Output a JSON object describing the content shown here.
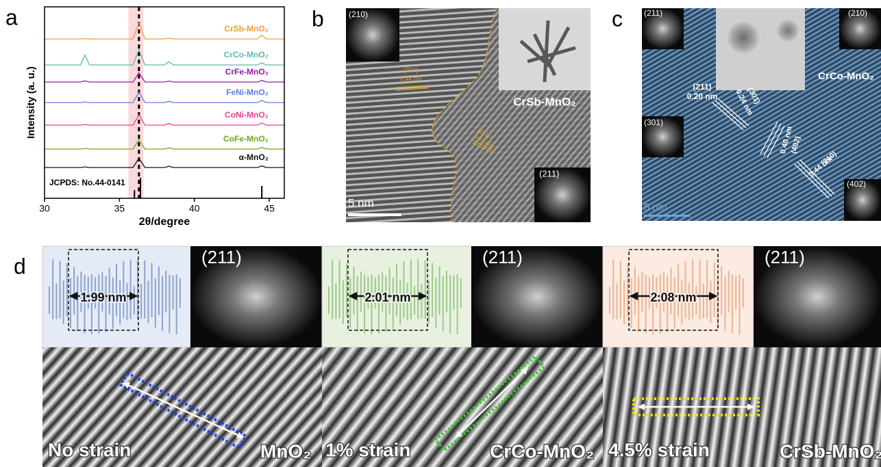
{
  "panel_labels": [
    "a",
    "b",
    "c",
    "d"
  ],
  "chart_data": {
    "type": "line",
    "xlabel": "2θ/degree",
    "ylabel": "Intensity (a. u.)",
    "xlim": [
      30,
      46
    ],
    "xticks": [
      30,
      35,
      40,
      45
    ],
    "x": [
      30,
      32.4,
      32.7,
      33.0,
      35.9,
      36.3,
      36.7,
      38.0,
      38.3,
      38.6,
      44.2,
      44.5,
      44.8,
      46
    ],
    "series": [
      {
        "name": "CrSb-MnO₂",
        "color": "#f39a3a",
        "values": [
          0,
          0,
          2,
          0,
          0,
          80,
          0,
          0,
          4,
          0,
          0,
          18,
          0,
          0
        ]
      },
      {
        "name": "CrCo-MnO₂",
        "color": "#5cb8b2",
        "values": [
          0,
          0,
          48,
          0,
          0,
          75,
          0,
          0,
          16,
          0,
          0,
          10,
          0,
          0
        ]
      },
      {
        "name": "CrFe-MnO₂",
        "color": "#9a18b0",
        "values": [
          0,
          0,
          6,
          0,
          0,
          45,
          0,
          0,
          5,
          0,
          0,
          8,
          0,
          0
        ]
      },
      {
        "name": "FeNi-MnO₂",
        "color": "#5a7fe0",
        "values": [
          0,
          0,
          3,
          0,
          0,
          50,
          0,
          0,
          6,
          0,
          0,
          10,
          0,
          0
        ]
      },
      {
        "name": "CoNi-MnO₂",
        "color": "#e8409a",
        "values": [
          0,
          0,
          3,
          0,
          0,
          50,
          0,
          0,
          8,
          0,
          0,
          10,
          0,
          0
        ]
      },
      {
        "name": "CoFe-MnO₂",
        "color": "#6aaa1e",
        "values": [
          0,
          0,
          3,
          0,
          0,
          45,
          0,
          0,
          6,
          0,
          0,
          8,
          0,
          0
        ]
      },
      {
        "name": "α-MnO₂",
        "color": "#111111",
        "values": [
          0,
          0,
          3,
          0,
          0,
          45,
          0,
          0,
          6,
          0,
          0,
          8,
          0,
          0
        ]
      }
    ],
    "highlight_band": [
      35.6,
      36.6
    ],
    "highlight_color": "#f8c8cc",
    "reference_line": 36.3,
    "reference_label": "JCPDS: No.44-0141",
    "reference_peaks": [
      36.0,
      36.4,
      44.5
    ],
    "reference_intensities": [
      40,
      100,
      60
    ]
  },
  "panel_b": {
    "fft_top": "(210)",
    "fringe1_index": "[210]",
    "fringe1_spacing": "0.44 nm",
    "fringe2_index": "[211]",
    "fringe2_spacing": "0.24 nm",
    "sample": "CrSb-MnO₂",
    "fft_bottom": "(211)",
    "scale": "5 nm"
  },
  "panel_c": {
    "fft_top_left": "(211)",
    "fft_top_right": "(210)",
    "sample": "CrCo-MnO₂",
    "fringe_211_index": "(211)",
    "fringe_211_spacing": "0.20 nm",
    "fringe_301_index": "(301)",
    "fringe_301_spacing": "0.24 nm",
    "fft_mid_left": "(301)",
    "fringe_402_spacing": "0.40 nm",
    "fringe_402_index": "(402)",
    "fringe_210_index": "(210)",
    "fringe_210_spacing": "0.44 nm",
    "fft_bottom_right": "(402)",
    "scale": "5 nm"
  },
  "panel_d": [
    {
      "spacing": "1.99 nm",
      "fft": "(211)",
      "strain": "No strain",
      "sample": "MnO₂"
    },
    {
      "spacing": "2.01 nm",
      "fft": "(211)",
      "strain": "1% strain",
      "sample": "CrCo-MnO₂"
    },
    {
      "spacing": "2.08 nm",
      "fft": "(211)",
      "strain": "4.5% strain",
      "sample": "CrSb-MnO₂"
    }
  ]
}
